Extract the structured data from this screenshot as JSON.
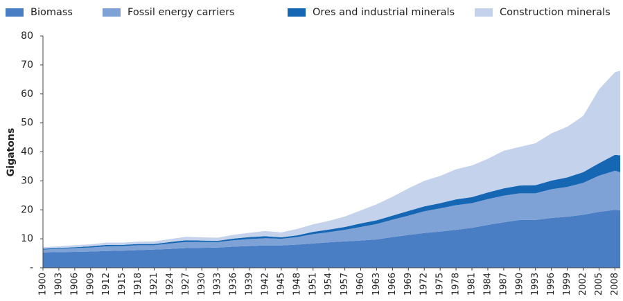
{
  "chart_data": {
    "type": "stacked-area",
    "y_label": "Gigatons",
    "x": [
      1900,
      1903,
      1906,
      1909,
      1912,
      1915,
      1918,
      1921,
      1924,
      1927,
      1930,
      1933,
      1936,
      1939,
      1942,
      1945,
      1948,
      1951,
      1954,
      1957,
      1960,
      1963,
      1966,
      1969,
      1972,
      1975,
      1978,
      1981,
      1984,
      1987,
      1990,
      1993,
      1996,
      1999,
      2002,
      2005,
      2008,
      2009
    ],
    "series": [
      {
        "name": "Biomass",
        "color": "#4a7ec4",
        "values": [
          5.3,
          5.4,
          5.5,
          5.6,
          5.8,
          5.9,
          6.1,
          6.3,
          6.5,
          6.8,
          6.9,
          7.0,
          7.3,
          7.5,
          7.7,
          7.7,
          8.0,
          8.4,
          8.8,
          9.1,
          9.4,
          9.8,
          10.6,
          11.3,
          12.0,
          12.5,
          13.1,
          13.8,
          14.8,
          15.7,
          16.5,
          16.5,
          17.2,
          17.6,
          18.3,
          19.3,
          20.0,
          19.8
        ]
      },
      {
        "name": "Fossil energy carriers",
        "color": "#7ea1d6",
        "values": [
          1.0,
          1.1,
          1.3,
          1.4,
          1.6,
          1.6,
          1.7,
          1.5,
          1.9,
          2.1,
          2.0,
          1.9,
          2.2,
          2.4,
          2.5,
          2.3,
          2.6,
          3.2,
          3.5,
          4.0,
          4.7,
          5.3,
          6.0,
          6.7,
          7.5,
          8.0,
          8.5,
          8.5,
          8.9,
          9.2,
          9.2,
          9.2,
          9.9,
          10.3,
          11.0,
          12.5,
          13.5,
          13.2
        ]
      },
      {
        "name": "Ores and industrial minerals",
        "color": "#1566b3",
        "values": [
          0.3,
          0.3,
          0.3,
          0.4,
          0.5,
          0.4,
          0.4,
          0.4,
          0.5,
          0.6,
          0.5,
          0.4,
          0.6,
          0.7,
          0.7,
          0.5,
          0.6,
          0.8,
          0.9,
          1.0,
          1.2,
          1.3,
          1.4,
          1.6,
          1.7,
          1.8,
          2.0,
          2.1,
          2.3,
          2.5,
          2.7,
          2.8,
          3.0,
          3.3,
          3.7,
          4.3,
          5.5,
          5.8
        ]
      },
      {
        "name": "Construction minerals",
        "color": "#c4d2ec",
        "values": [
          0.5,
          0.6,
          0.7,
          0.7,
          0.8,
          0.8,
          0.8,
          0.9,
          1.0,
          1.2,
          1.1,
          1.1,
          1.3,
          1.5,
          1.8,
          1.7,
          2.2,
          2.6,
          3.0,
          3.6,
          4.5,
          5.5,
          6.5,
          7.8,
          8.8,
          9.4,
          10.4,
          10.9,
          11.6,
          13.0,
          13.3,
          14.5,
          16.3,
          17.5,
          19.4,
          25.5,
          28.5,
          29.2
        ]
      }
    ],
    "xlim": [
      1900,
      2009
    ],
    "xticks": [
      1900,
      1903,
      1906,
      1909,
      1912,
      1915,
      1918,
      1921,
      1924,
      1927,
      1930,
      1933,
      1936,
      1939,
      1942,
      1945,
      1948,
      1951,
      1954,
      1957,
      1960,
      1963,
      1966,
      1969,
      1972,
      1975,
      1978,
      1981,
      1984,
      1987,
      1990,
      1993,
      1996,
      1999,
      2002,
      2005,
      2008
    ],
    "ylim": [
      0,
      80
    ],
    "yticks": [
      {
        "value": 0,
        "label": "-"
      },
      10,
      20,
      30,
      40,
      50,
      60,
      70,
      80
    ],
    "legend": "top"
  }
}
